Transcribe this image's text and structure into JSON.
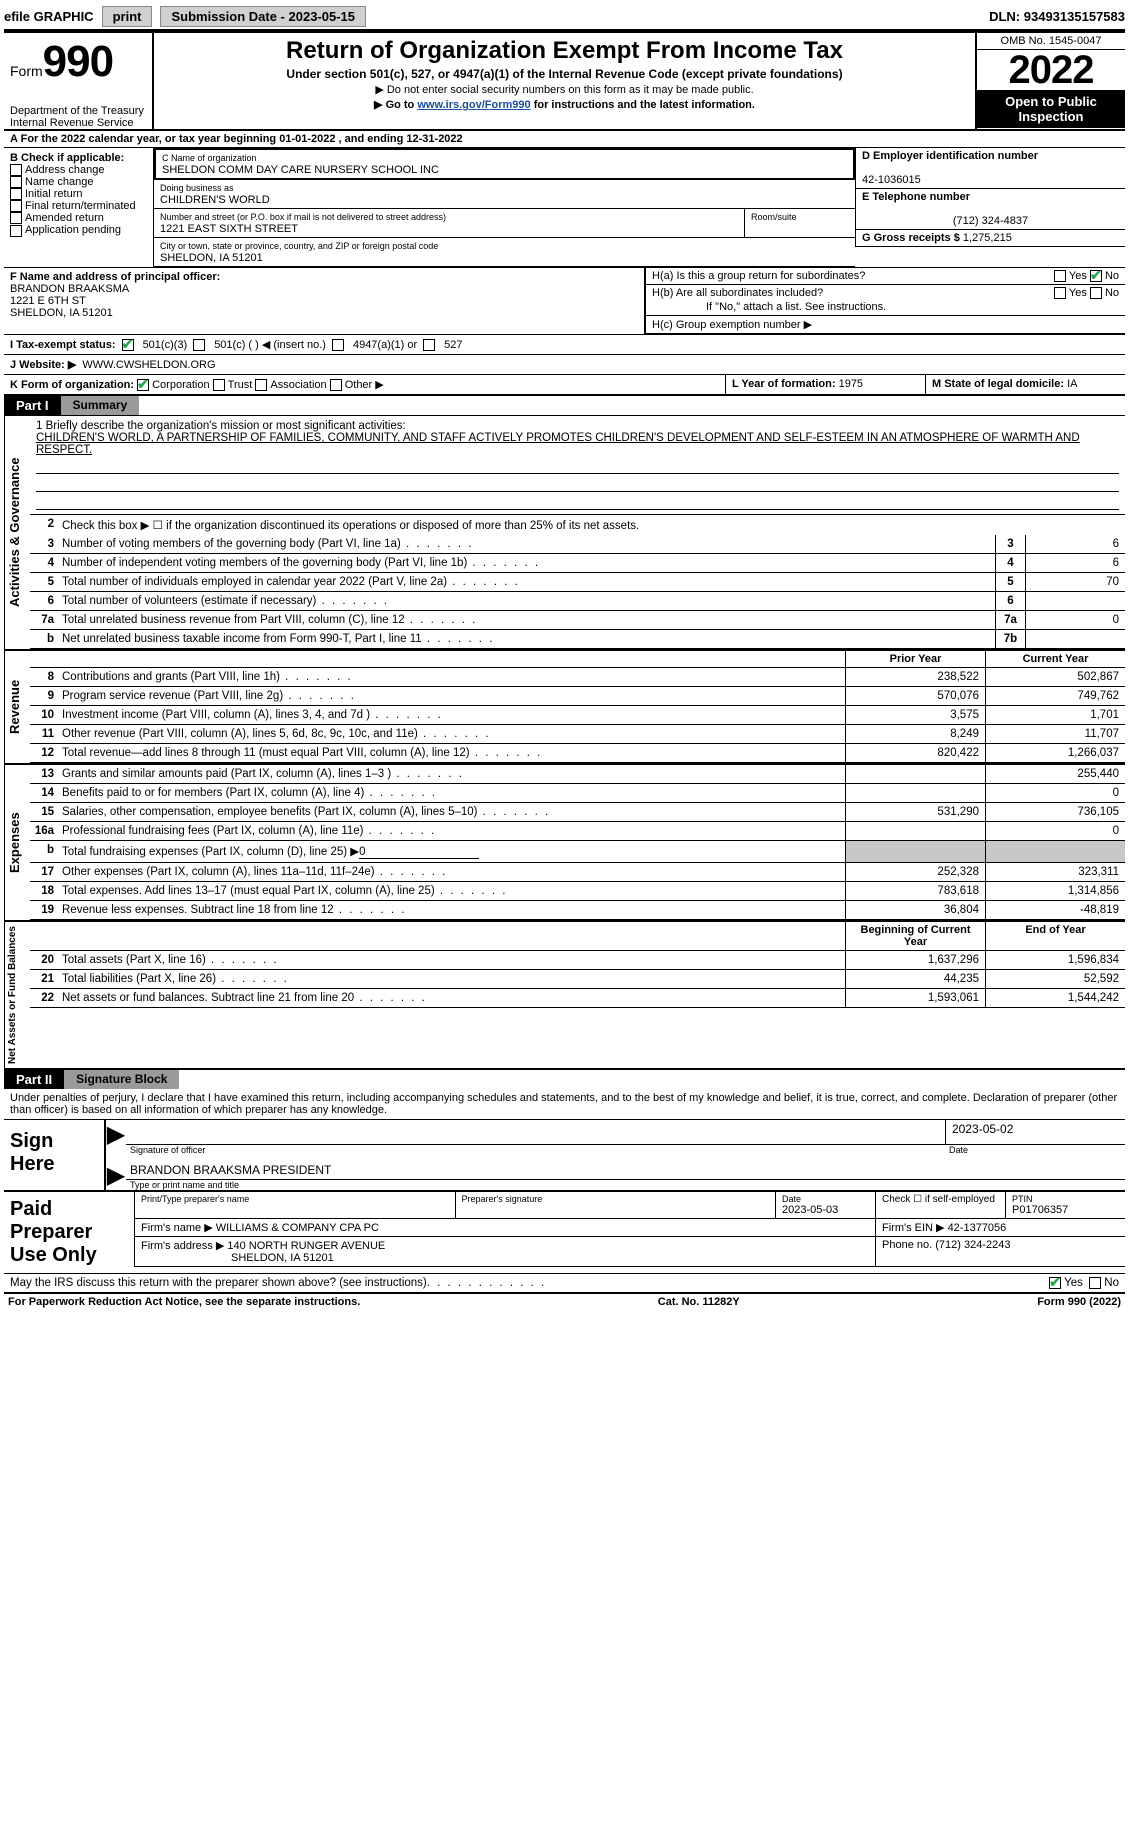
{
  "topbar": {
    "efile": "efile GRAPHIC",
    "print": "print",
    "submission_label": "Submission Date - ",
    "submission_date": "2023-05-15",
    "dln_label": "DLN: ",
    "dln": "93493135157583"
  },
  "header": {
    "form_word": "Form",
    "form_num": "990",
    "dept": "Department of the Treasury",
    "irs": "Internal Revenue Service",
    "title": "Return of Organization Exempt From Income Tax",
    "subtitle": "Under section 501(c), 527, or 4947(a)(1) of the Internal Revenue Code (except private foundations)",
    "note1": "▶ Do not enter social security numbers on this form as it may be made public.",
    "note2_pre": "▶ Go to ",
    "note2_link": "www.irs.gov/Form990",
    "note2_post": " for instructions and the latest information.",
    "omb": "OMB No. 1545-0047",
    "year": "2022",
    "inspect": "Open to Public Inspection"
  },
  "period": {
    "line": "For the 2022 calendar year, or tax year beginning ",
    "start": "01-01-2022",
    "mid": " , and ending ",
    "end": "12-31-2022"
  },
  "secB": {
    "label": "B Check if applicable:",
    "opts": [
      "Address change",
      "Name change",
      "Initial return",
      "Final return/terminated",
      "Amended return",
      "Application pending"
    ]
  },
  "secC": {
    "name_label": "C Name of organization",
    "name": "SHELDON COMM DAY CARE NURSERY SCHOOL INC",
    "dba_label": "Doing business as",
    "dba": "CHILDREN'S WORLD",
    "addr_label": "Number and street (or P.O. box if mail is not delivered to street address)",
    "addr": "1221 EAST SIXTH STREET",
    "room_label": "Room/suite",
    "city_label": "City or town, state or province, country, and ZIP or foreign postal code",
    "city": "SHELDON, IA  51201"
  },
  "secD": {
    "label": "D Employer identification number",
    "value": "42-1036015"
  },
  "secE": {
    "label": "E Telephone number",
    "value": "(712) 324-4837"
  },
  "secG": {
    "label": "G Gross receipts $",
    "value": "1,275,215"
  },
  "secF": {
    "label": "F  Name and address of principal officer:",
    "name": "BRANDON BRAAKSMA",
    "addr1": "1221 E 6TH ST",
    "addr2": "SHELDON, IA  51201"
  },
  "secH": {
    "a": "H(a)  Is this a group return for subordinates?",
    "b": "H(b)  Are all subordinates included?",
    "bnote": "If \"No,\" attach a list. See instructions.",
    "c": "H(c)  Group exemption number ▶",
    "yes": "Yes",
    "no": "No"
  },
  "secI": {
    "label": "I    Tax-exempt status:",
    "o1": "501(c)(3)",
    "o2": "501(c) (   ) ◀ (insert no.)",
    "o3": "4947(a)(1) or",
    "o4": "527"
  },
  "secJ": {
    "label": "J    Website: ▶",
    "value": "WWW.CWSHELDON.ORG"
  },
  "secK": {
    "label": "K Form of organization:",
    "o1": "Corporation",
    "o2": "Trust",
    "o3": "Association",
    "o4": "Other ▶"
  },
  "secL": {
    "label": "L Year of formation:",
    "value": "1975"
  },
  "secM": {
    "label": "M State of legal domicile:",
    "value": "IA"
  },
  "partI": {
    "num": "Part I",
    "title": "Summary"
  },
  "mission": {
    "q": "1   Briefly describe the organization's mission or most significant activities:",
    "text": "CHILDREN'S WORLD, A PARTNERSHIP OF FAMILIES, COMMUNITY, AND STAFF ACTIVELY PROMOTES CHILDREN'S DEVELOPMENT AND SELF-ESTEEM IN AN ATMOSPHERE OF WARMTH AND RESPECT."
  },
  "side_labels": {
    "ag": "Activities & Governance",
    "rev": "Revenue",
    "exp": "Expenses",
    "na": "Net Assets or Fund Balances"
  },
  "lines_top": [
    {
      "n": "2",
      "t": "Check this box ▶ ☐ if the organization discontinued its operations or disposed of more than 25% of its net assets."
    },
    {
      "n": "3",
      "t": "Number of voting members of the governing body (Part VI, line 1a)",
      "box": "3",
      "v": "6"
    },
    {
      "n": "4",
      "t": "Number of independent voting members of the governing body (Part VI, line 1b)",
      "box": "4",
      "v": "6"
    },
    {
      "n": "5",
      "t": "Total number of individuals employed in calendar year 2022 (Part V, line 2a)",
      "box": "5",
      "v": "70"
    },
    {
      "n": "6",
      "t": "Total number of volunteers (estimate if necessary)",
      "box": "6",
      "v": ""
    },
    {
      "n": "7a",
      "t": "Total unrelated business revenue from Part VIII, column (C), line 12",
      "box": "7a",
      "v": "0"
    },
    {
      "n": "b",
      "t": "Net unrelated business taxable income from Form 990-T, Part I, line 11",
      "box": "7b",
      "v": ""
    }
  ],
  "col_hdr": {
    "p": "Prior Year",
    "c": "Current Year",
    "b": "Beginning of Current Year",
    "e": "End of Year"
  },
  "rev": [
    {
      "n": "8",
      "t": "Contributions and grants (Part VIII, line 1h)",
      "p": "238,522",
      "c": "502,867"
    },
    {
      "n": "9",
      "t": "Program service revenue (Part VIII, line 2g)",
      "p": "570,076",
      "c": "749,762"
    },
    {
      "n": "10",
      "t": "Investment income (Part VIII, column (A), lines 3, 4, and 7d )",
      "p": "3,575",
      "c": "1,701"
    },
    {
      "n": "11",
      "t": "Other revenue (Part VIII, column (A), lines 5, 6d, 8c, 9c, 10c, and 11e)",
      "p": "8,249",
      "c": "11,707"
    },
    {
      "n": "12",
      "t": "Total revenue—add lines 8 through 11 (must equal Part VIII, column (A), line 12)",
      "p": "820,422",
      "c": "1,266,037"
    }
  ],
  "exp": [
    {
      "n": "13",
      "t": "Grants and similar amounts paid (Part IX, column (A), lines 1–3 )",
      "p": "",
      "c": "255,440"
    },
    {
      "n": "14",
      "t": "Benefits paid to or for members (Part IX, column (A), line 4)",
      "p": "",
      "c": "0"
    },
    {
      "n": "15",
      "t": "Salaries, other compensation, employee benefits (Part IX, column (A), lines 5–10)",
      "p": "531,290",
      "c": "736,105"
    },
    {
      "n": "16a",
      "t": "Professional fundraising fees (Part IX, column (A), line 11e)",
      "p": "",
      "c": "0"
    },
    {
      "n": "b",
      "t": "Total fundraising expenses (Part IX, column (D), line 25) ▶",
      "u": "0",
      "grey": true
    },
    {
      "n": "17",
      "t": "Other expenses (Part IX, column (A), lines 11a–11d, 11f–24e)",
      "p": "252,328",
      "c": "323,311"
    },
    {
      "n": "18",
      "t": "Total expenses. Add lines 13–17 (must equal Part IX, column (A), line 25)",
      "p": "783,618",
      "c": "1,314,856"
    },
    {
      "n": "19",
      "t": "Revenue less expenses. Subtract line 18 from line 12",
      "p": "36,804",
      "c": "-48,819"
    }
  ],
  "na": [
    {
      "n": "20",
      "t": "Total assets (Part X, line 16)",
      "p": "1,637,296",
      "c": "1,596,834"
    },
    {
      "n": "21",
      "t": "Total liabilities (Part X, line 26)",
      "p": "44,235",
      "c": "52,592"
    },
    {
      "n": "22",
      "t": "Net assets or fund balances. Subtract line 21 from line 20",
      "p": "1,593,061",
      "c": "1,544,242"
    }
  ],
  "partII": {
    "num": "Part II",
    "title": "Signature Block"
  },
  "penalties": "Under penalties of perjury, I declare that I have examined this return, including accompanying schedules and statements, and to the best of my knowledge and belief, it is true, correct, and complete. Declaration of preparer (other than officer) is based on all information of which preparer has any knowledge.",
  "sign": {
    "here": "Sign Here",
    "sig_officer": "Signature of officer",
    "date": "Date",
    "sig_date": "2023-05-02",
    "name_title": "BRANDON BRAAKSMA  PRESIDENT",
    "type_name": "Type or print name and title"
  },
  "paid": {
    "label": "Paid Preparer Use Only",
    "r1": {
      "a": "Print/Type preparer's name",
      "b": "Preparer's signature",
      "c": "Date",
      "cd": "2023-05-03",
      "d": "Check ☐ if self-employed",
      "e": "PTIN",
      "ev": "P01706357"
    },
    "r2": {
      "a": "Firm's name    ▶",
      "av": "WILLIAMS & COMPANY CPA PC",
      "b": "Firm's EIN ▶",
      "bv": "42-1377056"
    },
    "r3": {
      "a": "Firm's address ▶",
      "av1": "140 NORTH RUNGER AVENUE",
      "av2": "SHELDON, IA  51201",
      "b": "Phone no.",
      "bv": "(712) 324-2243"
    }
  },
  "discuss": {
    "q": "May the IRS discuss this return with the preparer shown above? (see instructions)",
    "yes": "Yes",
    "no": "No"
  },
  "footer": {
    "left": "For Paperwork Reduction Act Notice, see the separate instructions.",
    "mid": "Cat. No. 11282Y",
    "right": "Form 990 (2022)"
  }
}
